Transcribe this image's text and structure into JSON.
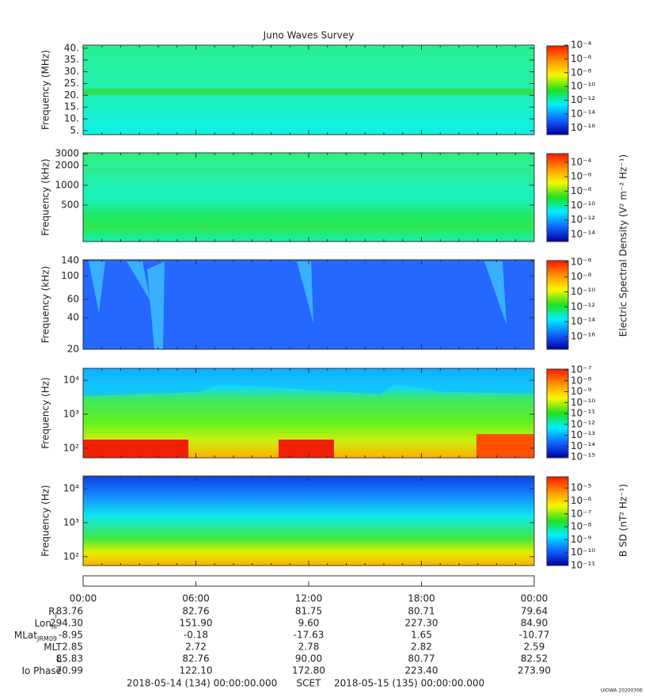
{
  "title": "Juno Waves Survey",
  "panels": [
    {
      "ylabel": "Frequency (MHz)",
      "scale": "linear",
      "ylim": [
        3.3,
        41.3
      ],
      "yticks": [
        {
          "value": 40,
          "label": "40."
        },
        {
          "value": 35,
          "label": "35."
        },
        {
          "value": 30,
          "label": "30."
        },
        {
          "value": 25,
          "label": "25."
        },
        {
          "value": 20,
          "label": "20."
        },
        {
          "value": 15,
          "label": "15."
        },
        {
          "value": 10,
          "label": "10."
        },
        {
          "value": 5,
          "label": "5."
        }
      ],
      "clim": [
        1e-17,
        0.0001
      ],
      "cticks": [
        {
          "value": 0.0001,
          "label": "10⁻⁴"
        },
        {
          "value": 1e-06,
          "label": "10⁻⁶"
        },
        {
          "value": 1e-08,
          "label": "10⁻⁸"
        },
        {
          "value": 1e-10,
          "label": "10⁻¹⁰"
        },
        {
          "value": 1e-12,
          "label": "10⁻¹²"
        },
        {
          "value": 1e-14,
          "label": "10⁻¹⁴"
        },
        {
          "value": 1e-16,
          "label": "10⁻¹⁶"
        }
      ]
    },
    {
      "ylabel": "Frequency (kHz)",
      "scale": "log",
      "ylim": [
        140,
        3100
      ],
      "yticks": [
        3000,
        2000,
        1000,
        500
      ],
      "clim": [
        1e-15,
        0.002
      ],
      "cticks": [
        {
          "value": 0.0001,
          "label": "10⁻⁴"
        },
        {
          "value": 1e-06,
          "label": "10⁻⁶"
        },
        {
          "value": 1e-08,
          "label": "10⁻⁸"
        },
        {
          "value": 1e-10,
          "label": "10⁻¹⁰"
        },
        {
          "value": 1e-12,
          "label": "10⁻¹²"
        },
        {
          "value": 1e-14,
          "label": "10⁻¹⁴"
        }
      ]
    },
    {
      "ylabel": "Frequency (kHz)",
      "scale": "log",
      "ylim": [
        20,
        143
      ],
      "yticks": [
        140,
        100,
        60,
        40,
        20
      ],
      "clim": [
        2e-18,
        2e-06
      ],
      "cticks": [
        {
          "value": 1e-06,
          "label": "10⁻⁶"
        },
        {
          "value": 1e-08,
          "label": "10⁻⁸"
        },
        {
          "value": 1e-10,
          "label": "10⁻¹⁰"
        },
        {
          "value": 1e-12,
          "label": "10⁻¹²"
        },
        {
          "value": 1e-14,
          "label": "10⁻¹⁴"
        },
        {
          "value": 1e-16,
          "label": "10⁻¹⁶"
        }
      ]
    },
    {
      "ylabel": "Frequency (Hz)",
      "scale": "log",
      "ylim": [
        52,
        22400
      ],
      "yticks": [
        {
          "value": 10000,
          "label": "10⁴"
        },
        {
          "value": 1000,
          "label": "10³"
        },
        {
          "value": 100,
          "label": "10²"
        }
      ],
      "clim": [
        8.5e-16,
        1.4e-07
      ],
      "cticks": [
        {
          "value": 1e-07,
          "label": "10⁻⁷"
        },
        {
          "value": 1e-08,
          "label": "10⁻⁸"
        },
        {
          "value": 1e-09,
          "label": "10⁻⁹"
        },
        {
          "value": 1e-10,
          "label": "10⁻¹⁰"
        },
        {
          "value": 1e-11,
          "label": "10⁻¹¹"
        },
        {
          "value": 1e-12,
          "label": "10⁻¹²"
        },
        {
          "value": 1e-13,
          "label": "10⁻¹³"
        },
        {
          "value": 1e-14,
          "label": "10⁻¹⁴"
        },
        {
          "value": 1e-15,
          "label": "10⁻¹⁵"
        }
      ]
    },
    {
      "ylabel": "Frequency (Hz)",
      "scale": "log",
      "ylim": [
        55,
        23500
      ],
      "yticks": [
        {
          "value": 10000,
          "label": "10⁴"
        },
        {
          "value": 1000,
          "label": "10³"
        },
        {
          "value": 100,
          "label": "10²"
        }
      ],
      "clim": [
        1e-11,
        8.5e-05
      ],
      "cticks": [
        {
          "value": 1e-05,
          "label": "10⁻⁵"
        },
        {
          "value": 1e-06,
          "label": "10⁻⁶"
        },
        {
          "value": 1e-07,
          "label": "10⁻⁷"
        },
        {
          "value": 1e-08,
          "label": "10⁻⁸"
        },
        {
          "value": 1e-09,
          "label": "10⁻⁹"
        },
        {
          "value": 1e-10,
          "label": "10⁻¹⁰"
        },
        {
          "value": 1e-11,
          "label": "10⁻¹¹"
        }
      ]
    }
  ],
  "colorbar_labels": {
    "electric": "Electric Spectral Density (V² m⁻² Hz⁻¹)",
    "magnetic": "B SD (nT² Hz⁻¹)"
  },
  "xticks": [
    "00:00",
    "06:00",
    "12:00",
    "18:00",
    "00:00"
  ],
  "ephemeris": [
    {
      "label": "R",
      "sub": "J",
      "values": [
        "83.76",
        "82.76",
        "81.75",
        "80.71",
        "79.64"
      ]
    },
    {
      "label": "Lon",
      "sub": "III",
      "values": [
        "294.30",
        "151.90",
        "9.60",
        "227.30",
        "84.90"
      ]
    },
    {
      "label": "MLat",
      "sub": "JRM09",
      "values": [
        "-8.95",
        "-0.18",
        "-17.63",
        "1.65",
        "-10.77"
      ]
    },
    {
      "label": "MLT",
      "values": [
        "2.85",
        "2.72",
        "2.78",
        "2.82",
        "2.59"
      ]
    },
    {
      "label": "L",
      "values": [
        "85.83",
        "82.76",
        "90.00",
        "80.77",
        "82.52"
      ]
    },
    {
      "label": "Io Phase",
      "values": [
        "70.99",
        "122.10",
        "172.80",
        "223.40",
        "273.90"
      ]
    }
  ],
  "scet": {
    "start": "2018-05-14 (134) 00:00:00.000",
    "label": "SCET",
    "end": "2018-05-15 (135) 00:00:00.000"
  },
  "footer": "UIOWA 20200306"
}
